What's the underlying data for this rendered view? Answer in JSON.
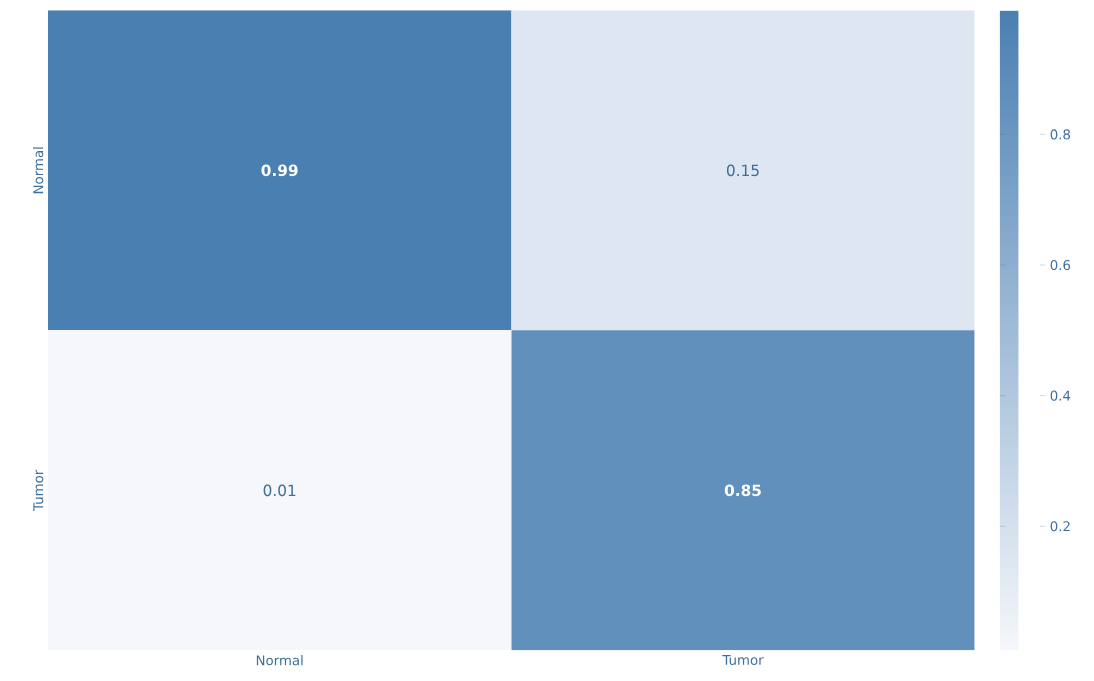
{
  "chart_data": {
    "type": "heatmap",
    "categories": [
      "Normal",
      "Tumor"
    ],
    "y_categories": [
      "Normal",
      "Tumor"
    ],
    "cells": [
      [
        0.99,
        0.15
      ],
      [
        0.01,
        0.85
      ]
    ],
    "data_labels": true,
    "clim": [
      0.01,
      0.99
    ],
    "cticks": [
      0.2,
      0.4,
      0.6,
      0.8
    ],
    "colors": [
      "#f5f7fb",
      "#4a7fb2"
    ]
  }
}
